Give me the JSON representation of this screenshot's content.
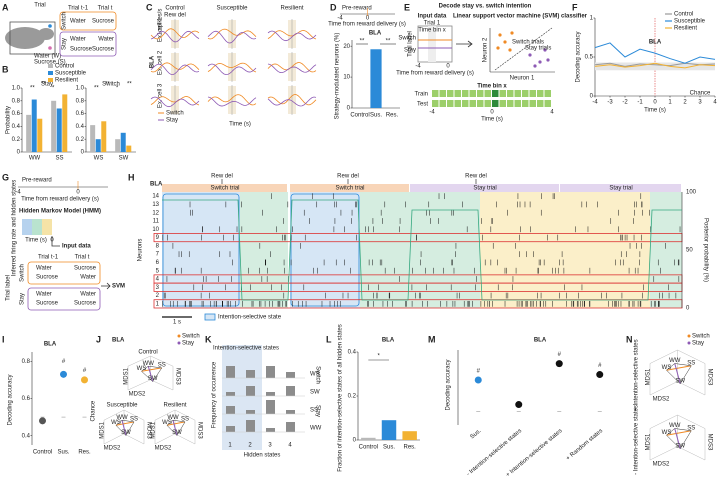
{
  "A": {
    "label": "A",
    "trial": "Trial",
    "t1": "Trial t-1",
    "t": "Trial t",
    "switch": "Switch",
    "stay": "Stay",
    "water_w": "Water (W)",
    "sucrose_s": "Sucrose (S)",
    "switch_pair": [
      "Water",
      "Sucrose"
    ],
    "stay_pairs": [
      [
        "Water",
        "Water"
      ],
      [
        "Sucrose",
        "Sucrose"
      ]
    ]
  },
  "B": {
    "label": "B",
    "y_label": "Probability",
    "ylim": [
      0,
      1
    ],
    "yticks": [
      0,
      0.2,
      0.4,
      0.6,
      0.8,
      {
        "value": 1,
        "label": "1.0"
      }
    ],
    "legend": [
      {
        "name": "Control",
        "color": "#b9b9b9"
      },
      {
        "name": "Susceptible",
        "color": "#2b8ad8"
      },
      {
        "name": "Resilient",
        "color": "#f2b233"
      }
    ],
    "stay": {
      "title": "Stay",
      "categories": [
        "WW",
        "SS"
      ],
      "values": [
        [
          0.58,
          0.8
        ],
        [
          0.82,
          0.68
        ],
        [
          0.52,
          0.9
        ]
      ],
      "stars": [
        "**",
        "**",
        "*"
      ]
    },
    "switch": {
      "title": "Switch",
      "categories": [
        "WS",
        "SW"
      ],
      "values": [
        [
          0.42,
          0.2
        ],
        [
          0.2,
          0.3
        ],
        [
          0.48,
          0.1
        ]
      ],
      "stars": [
        "**",
        "**",
        "*",
        "**"
      ]
    }
  },
  "C": {
    "label": "C",
    "columns": [
      "Control",
      "Susceptible",
      "Resilient"
    ],
    "rew_del": "Rew del",
    "scale": "1 spikes/s",
    "region": "BLA",
    "cells": [
      "Ex. cell 1",
      "Ex. cell 2",
      "Ex. cell 3"
    ],
    "legend": [
      "Switch",
      "Stay"
    ],
    "x_label": "Time (s)"
  },
  "D": {
    "label": "D",
    "inset_title": "Pre-reward",
    "inset_xticks": [
      -4,
      0
    ],
    "inset_xlabel": "Time from reward delivery (s)",
    "title": "BLA",
    "y_label": "Strategy-modulated neurons (%)",
    "ylim": [
      0,
      22
    ],
    "yticks": [
      0,
      10,
      20
    ],
    "categories": [
      "Control",
      "Sus.",
      "Res."
    ],
    "values": [
      0,
      19,
      0
    ],
    "color": "#2b8ad8",
    "stars": [
      "**",
      "**"
    ]
  },
  "E": {
    "label": "E",
    "title": "Decode stay vs. switch intention",
    "input": "Input data",
    "trial1": "Trial 1",
    "bin": "Time bin x",
    "trial_label": "Trial label",
    "switch": "Switch",
    "stay": "Stay",
    "x_label": "Time from reward delivery (s)",
    "xticks": [
      -4,
      0
    ],
    "svm": "Linear support vector machine (SVM) classifier",
    "n2": "Neuron 2",
    "n1": "Neuron 1",
    "switch_trials": "Switch trials",
    "stay_trials": "Stay trials",
    "bin2": "Time bin x",
    "train": "Train",
    "test": "Test",
    "xticks2": [
      -4,
      0,
      4
    ],
    "x_label2": "Time (s)"
  },
  "F": {
    "label": "F",
    "title": "BLA",
    "y_label": "Decoding accuracy",
    "x_label": "Time (s)",
    "chance_label": "Chance",
    "xlim": [
      -4,
      4
    ],
    "ylim": [
      0,
      1
    ],
    "xticks": [
      -4,
      -3,
      -2,
      -1,
      0,
      1,
      2,
      3,
      4
    ],
    "yticks": [
      0,
      0.5,
      1
    ],
    "x": [
      -4,
      -3,
      -2,
      -1,
      0,
      1,
      2,
      3,
      4
    ],
    "series": [
      {
        "name": "Control",
        "color": "#9a9a9a",
        "values": [
          0.4,
          0.42,
          0.38,
          0.41,
          0.4,
          0.39,
          0.42,
          0.4,
          0.41
        ]
      },
      {
        "name": "Susceptible",
        "color": "#2b8ad8",
        "values": [
          0.62,
          0.68,
          0.5,
          0.6,
          0.55,
          0.48,
          0.42,
          0.5,
          0.47
        ]
      },
      {
        "name": "Resilient",
        "color": "#f2b233",
        "values": [
          0.38,
          0.4,
          0.37,
          0.39,
          0.42,
          0.38,
          0.36,
          0.4,
          0.39
        ]
      }
    ]
  },
  "G": {
    "label": "G",
    "pre": "Pre-reward",
    "xticks": [
      -4,
      0
    ],
    "x_label": "Time from reward delivery (s)",
    "hmm": "Hidden Markov Model (HMM)",
    "inferred": "Inferred firing rate and hidden states",
    "time": "Time (s)",
    "zero": "0",
    "input": "Input data",
    "t1": "Trial t-1",
    "t": "Trial t",
    "trial_label": "Trial label",
    "switch": "Switch",
    "stay": "Stay",
    "switch_rows": [
      [
        "Water",
        "Sucrose"
      ],
      [
        "Sucrose",
        "Water"
      ]
    ],
    "stay_rows": [
      [
        "Water",
        "Water"
      ],
      [
        "Sucrose",
        "Sucrose"
      ]
    ],
    "svm": "SVM"
  },
  "H": {
    "label": "H",
    "title": "BLA",
    "rew_del": [
      "Rew del",
      "Rew del",
      "Rew del"
    ],
    "trials": [
      "Switch trial",
      "Switch trial",
      "Stay trial",
      "Stay trial"
    ],
    "neurons": [
      "14",
      "13",
      "12",
      "11",
      "10",
      "9",
      "8",
      "7",
      "6",
      "5",
      "4",
      "3",
      "2",
      "1"
    ],
    "y_label": "Neurons",
    "y2_label": "Posterior probability (%)",
    "y2ticks": [
      100,
      50,
      0
    ],
    "scale": "1 s",
    "legend": "Intention-selective state"
  },
  "I": {
    "label": "I",
    "title": "BLA",
    "y_label": "Decoding accuracy",
    "ylim": [
      0.35,
      0.85
    ],
    "yticks": [
      0.4,
      0.6,
      0.8
    ],
    "categories": [
      "Control",
      "Sus.",
      "Res."
    ],
    "values": [
      0.48,
      0.73,
      0.7
    ],
    "colors": [
      "#555555",
      "#2b8ad8",
      "#f2b233"
    ],
    "chance_values": [
      0.5,
      0.5,
      0.5
    ],
    "chance_label": "Chance",
    "marks": [
      "#",
      "#"
    ]
  },
  "J": {
    "label": "J",
    "title": "BLA",
    "legend": [
      "Switch",
      "Stay"
    ],
    "groups": [
      "Control",
      "Susceptible",
      "Resilient"
    ],
    "axes": [
      "MDS1",
      "MDS2",
      "MDS3"
    ],
    "states": [
      "WS",
      "SW",
      "SS",
      "WW"
    ]
  },
  "K": {
    "label": "K",
    "band": "Intention-selective states",
    "y_label": "Frequency of occurrence",
    "x_label": "Hidden states",
    "xticks": [
      "1",
      "2",
      "3",
      "4"
    ],
    "rows": [
      "WS",
      "SW",
      "SS",
      "WW"
    ],
    "switch": "Switch",
    "stay": "Stay"
  },
  "L": {
    "label": "L",
    "title": "BLA",
    "y_label": "Fraction of intention-selective states of all hidden states",
    "ylim": [
      0,
      0.4
    ],
    "yticks": [
      0,
      0.2,
      0.4
    ],
    "categories": [
      "Control",
      "Sus.",
      "Res."
    ],
    "values": [
      0.01,
      0.09,
      0.04
    ],
    "colors": [
      "#b9b9b9",
      "#2b8ad8",
      "#f2b233"
    ],
    "star": "*"
  },
  "M": {
    "label": "M",
    "title": "BLA",
    "y_label": "Decoding accuracy",
    "ylim": [
      0.4,
      0.95
    ],
    "categories": [
      "Sus.",
      "- Intention-selective states",
      "+ Intention-selective states",
      "+ Random states"
    ],
    "values": [
      0.73,
      0.55,
      0.85,
      0.77
    ],
    "colors": [
      "#2b8ad8",
      "#111111",
      "#111111",
      "#111111"
    ],
    "marks": [
      "#",
      "#",
      "#"
    ]
  },
  "N": {
    "label": "N",
    "legend": [
      "Switch",
      "Stay"
    ],
    "plus": "+ Intention-selective states",
    "minus": "- Intention-selective states",
    "axes": [
      "MDS1",
      "MDS2",
      "MDS3"
    ],
    "states": [
      "WS",
      "SW",
      "SS",
      "WW"
    ]
  }
}
